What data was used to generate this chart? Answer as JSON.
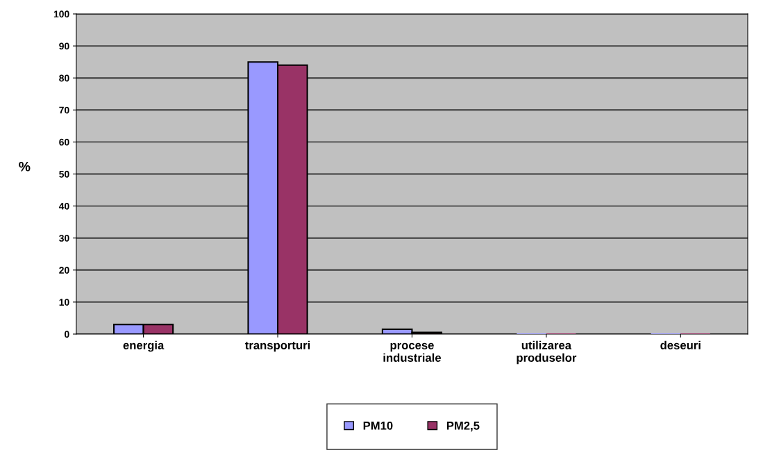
{
  "chart_data": {
    "type": "bar",
    "ylabel": "%",
    "categories": [
      "energia",
      "transporturi",
      "procese\nindustriale",
      "utilizarea\nproduselor",
      "deseuri"
    ],
    "series": [
      {
        "name": "PM10",
        "color": "#9999ff",
        "values": [
          3,
          85,
          1.5,
          0,
          0
        ]
      },
      {
        "name": "PM2,5",
        "color": "#993366",
        "values": [
          3,
          84,
          0.5,
          0,
          0
        ]
      }
    ],
    "ylim": [
      0,
      100
    ],
    "yticks": [
      0,
      10,
      20,
      30,
      40,
      50,
      60,
      70,
      80,
      90,
      100
    ],
    "grid": "y",
    "legend": "bottom"
  }
}
